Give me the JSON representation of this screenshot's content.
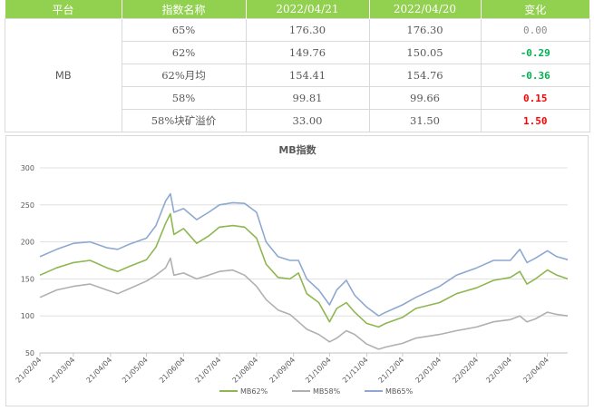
{
  "table": {
    "headers": [
      "平台",
      "指数名称",
      "2022/04/21",
      "2022/04/20",
      "变化"
    ],
    "platform": "MB",
    "rows": [
      {
        "name": "65%",
        "d1": "176.30",
        "d2": "176.30",
        "change": "0.00",
        "dir": "zero"
      },
      {
        "name": "62%",
        "d1": "149.76",
        "d2": "150.05",
        "change": "-0.29",
        "dir": "neg"
      },
      {
        "name": "62%月均",
        "d1": "154.41",
        "d2": "154.76",
        "change": "-0.36",
        "dir": "neg"
      },
      {
        "name": "58%",
        "d1": "99.81",
        "d2": "99.66",
        "change": "0.15",
        "dir": "pos"
      },
      {
        "name": "58%块矿溢价",
        "d1": "33.00",
        "d2": "31.50",
        "change": "1.50",
        "dir": "pos"
      }
    ],
    "colors": {
      "header_bg": "#92d050",
      "negative": "#00b050",
      "positive": "#ff0000"
    }
  },
  "chart_data": {
    "type": "line",
    "title": "MB指数",
    "ylim": [
      50,
      300
    ],
    "yticks": [
      50,
      100,
      150,
      200,
      250,
      300
    ],
    "xticks": [
      "21/02/04",
      "21/03/04",
      "21/04/04",
      "21/05/04",
      "21/06/04",
      "21/07/04",
      "21/08/04",
      "21/09/04",
      "21/10/04",
      "21/11/04",
      "21/12/04",
      "22/01/04",
      "22/02/04",
      "22/03/04",
      "22/04/04"
    ],
    "xrange": [
      "21/02/04",
      "22/04/21"
    ],
    "grid": "horizontal",
    "legend": "bottom",
    "series": [
      {
        "name": "MB62%",
        "color": "#8fb64f",
        "points": [
          [
            "21/02/04",
            155
          ],
          [
            "21/02/18",
            165
          ],
          [
            "21/03/04",
            172
          ],
          [
            "21/03/18",
            175
          ],
          [
            "21/04/01",
            165
          ],
          [
            "21/04/10",
            160
          ],
          [
            "21/04/20",
            167
          ],
          [
            "21/05/04",
            176
          ],
          [
            "21/05/12",
            193
          ],
          [
            "21/05/20",
            225
          ],
          [
            "21/05/24",
            238
          ],
          [
            "21/05/27",
            210
          ],
          [
            "21/06/04",
            218
          ],
          [
            "21/06/15",
            198
          ],
          [
            "21/06/25",
            208
          ],
          [
            "21/07/04",
            220
          ],
          [
            "21/07/15",
            222
          ],
          [
            "21/07/25",
            220
          ],
          [
            "21/08/04",
            205
          ],
          [
            "21/08/12",
            170
          ],
          [
            "21/08/22",
            152
          ],
          [
            "21/09/01",
            150
          ],
          [
            "21/09/08",
            158
          ],
          [
            "21/09/15",
            130
          ],
          [
            "21/09/25",
            118
          ],
          [
            "21/10/04",
            92
          ],
          [
            "21/10/10",
            110
          ],
          [
            "21/10/18",
            118
          ],
          [
            "21/10/25",
            105
          ],
          [
            "21/11/04",
            90
          ],
          [
            "21/11/14",
            85
          ],
          [
            "21/11/20",
            90
          ],
          [
            "21/12/04",
            98
          ],
          [
            "21/12/15",
            110
          ],
          [
            "22/01/04",
            118
          ],
          [
            "22/01/18",
            130
          ],
          [
            "22/02/04",
            138
          ],
          [
            "22/02/18",
            148
          ],
          [
            "22/03/04",
            152
          ],
          [
            "22/03/12",
            160
          ],
          [
            "22/03/18",
            143
          ],
          [
            "22/03/25",
            150
          ],
          [
            "22/04/04",
            162
          ],
          [
            "22/04/12",
            155
          ],
          [
            "22/04/21",
            150
          ]
        ]
      },
      {
        "name": "MB58%",
        "color": "#b0b0b0",
        "points": [
          [
            "21/02/04",
            125
          ],
          [
            "21/02/18",
            135
          ],
          [
            "21/03/04",
            140
          ],
          [
            "21/03/18",
            143
          ],
          [
            "21/04/01",
            135
          ],
          [
            "21/04/10",
            130
          ],
          [
            "21/04/20",
            137
          ],
          [
            "21/05/04",
            147
          ],
          [
            "21/05/12",
            155
          ],
          [
            "21/05/20",
            165
          ],
          [
            "21/05/24",
            178
          ],
          [
            "21/05/27",
            155
          ],
          [
            "21/06/04",
            158
          ],
          [
            "21/06/15",
            150
          ],
          [
            "21/06/25",
            155
          ],
          [
            "21/07/04",
            160
          ],
          [
            "21/07/15",
            162
          ],
          [
            "21/07/25",
            155
          ],
          [
            "21/08/04",
            140
          ],
          [
            "21/08/12",
            122
          ],
          [
            "21/08/22",
            108
          ],
          [
            "21/09/01",
            102
          ],
          [
            "21/09/08",
            92
          ],
          [
            "21/09/15",
            82
          ],
          [
            "21/09/25",
            75
          ],
          [
            "21/10/04",
            65
          ],
          [
            "21/10/10",
            70
          ],
          [
            "21/10/18",
            80
          ],
          [
            "21/10/25",
            75
          ],
          [
            "21/11/04",
            62
          ],
          [
            "21/11/14",
            55
          ],
          [
            "21/11/20",
            58
          ],
          [
            "21/12/04",
            63
          ],
          [
            "21/12/15",
            70
          ],
          [
            "22/01/04",
            75
          ],
          [
            "22/01/18",
            80
          ],
          [
            "22/02/04",
            85
          ],
          [
            "22/02/18",
            92
          ],
          [
            "22/03/04",
            95
          ],
          [
            "22/03/12",
            100
          ],
          [
            "22/03/18",
            92
          ],
          [
            "22/03/25",
            96
          ],
          [
            "22/04/04",
            105
          ],
          [
            "22/04/12",
            102
          ],
          [
            "22/04/21",
            100
          ]
        ]
      },
      {
        "name": "MB65%",
        "color": "#8ea9d1",
        "points": [
          [
            "21/02/04",
            180
          ],
          [
            "21/02/18",
            190
          ],
          [
            "21/03/04",
            198
          ],
          [
            "21/03/18",
            200
          ],
          [
            "21/04/01",
            192
          ],
          [
            "21/04/10",
            190
          ],
          [
            "21/04/20",
            197
          ],
          [
            "21/05/04",
            205
          ],
          [
            "21/05/12",
            222
          ],
          [
            "21/05/20",
            255
          ],
          [
            "21/05/24",
            265
          ],
          [
            "21/05/27",
            240
          ],
          [
            "21/06/04",
            245
          ],
          [
            "21/06/15",
            230
          ],
          [
            "21/06/25",
            240
          ],
          [
            "21/07/04",
            250
          ],
          [
            "21/07/15",
            253
          ],
          [
            "21/07/25",
            252
          ],
          [
            "21/08/04",
            240
          ],
          [
            "21/08/12",
            200
          ],
          [
            "21/08/22",
            180
          ],
          [
            "21/09/01",
            175
          ],
          [
            "21/09/08",
            175
          ],
          [
            "21/09/15",
            150
          ],
          [
            "21/09/25",
            135
          ],
          [
            "21/10/04",
            115
          ],
          [
            "21/10/10",
            135
          ],
          [
            "21/10/18",
            148
          ],
          [
            "21/10/25",
            128
          ],
          [
            "21/11/04",
            112
          ],
          [
            "21/11/14",
            100
          ],
          [
            "21/11/20",
            105
          ],
          [
            "21/12/04",
            115
          ],
          [
            "21/12/15",
            125
          ],
          [
            "22/01/04",
            140
          ],
          [
            "22/01/18",
            155
          ],
          [
            "22/02/04",
            165
          ],
          [
            "22/02/18",
            175
          ],
          [
            "22/03/04",
            175
          ],
          [
            "22/03/12",
            190
          ],
          [
            "22/03/18",
            172
          ],
          [
            "22/03/25",
            178
          ],
          [
            "22/04/04",
            188
          ],
          [
            "22/04/12",
            180
          ],
          [
            "22/04/21",
            176
          ]
        ]
      }
    ]
  }
}
